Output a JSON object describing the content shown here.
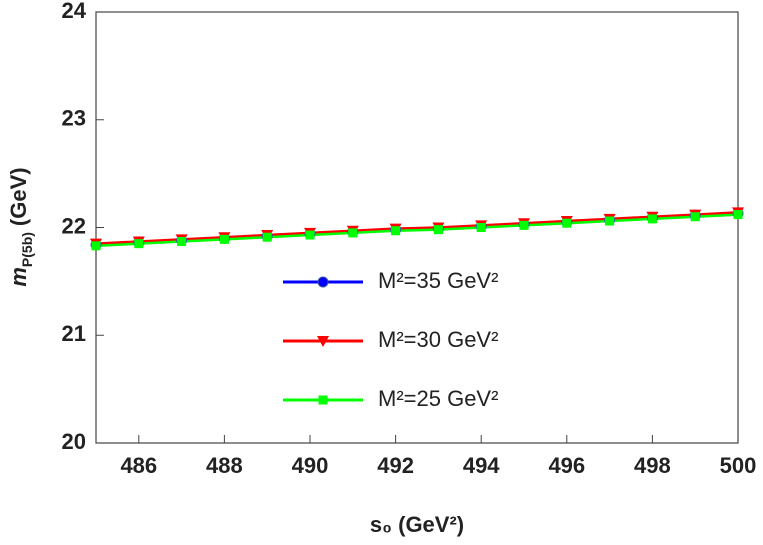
{
  "chart_data": {
    "type": "line",
    "x_label": "s₀ (GeV²)",
    "y_label": {
      "main": "m",
      "sub": "P(5b)",
      "unit": "(GeV)"
    },
    "x": [
      485,
      486,
      487,
      488,
      489,
      490,
      491,
      492,
      493,
      494,
      495,
      496,
      497,
      498,
      499,
      500
    ],
    "series": [
      {
        "name": "M²=35 GeV²",
        "color": "#0000ff",
        "marker": "circle",
        "values": [
          21.84,
          21.86,
          21.88,
          21.9,
          21.92,
          21.94,
          21.96,
          21.98,
          21.99,
          22.01,
          22.03,
          22.05,
          22.07,
          22.09,
          22.11,
          22.13
        ]
      },
      {
        "name": "M²=30 GeV²",
        "color": "#ff0000",
        "marker": "triangle",
        "values": [
          21.85,
          21.87,
          21.89,
          21.91,
          21.93,
          21.95,
          21.97,
          21.99,
          22.0,
          22.02,
          22.04,
          22.06,
          22.08,
          22.1,
          22.12,
          22.14
        ]
      },
      {
        "name": "M²=25 GeV²",
        "color": "#00ff00",
        "marker": "square",
        "values": [
          21.83,
          21.85,
          21.87,
          21.89,
          21.91,
          21.93,
          21.95,
          21.97,
          21.98,
          22.0,
          22.02,
          22.04,
          22.06,
          22.08,
          22.1,
          22.12
        ]
      }
    ],
    "xlim": [
      485,
      500
    ],
    "xticks": [
      486,
      488,
      490,
      492,
      494,
      496,
      498,
      500
    ],
    "ylim": [
      20,
      24
    ],
    "yticks": [
      20,
      21,
      22,
      23,
      24
    ]
  }
}
